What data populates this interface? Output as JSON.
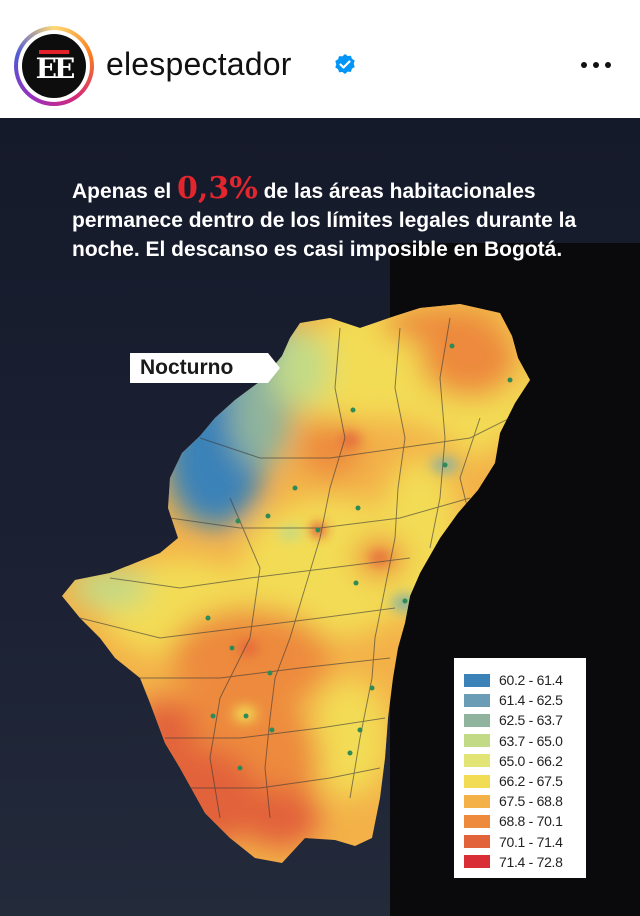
{
  "header": {
    "username": "elespectador",
    "avatar_text": "EE",
    "verified_icon": "verified-badge-icon",
    "more_icon": "more-options-icon"
  },
  "post": {
    "headline_pre": "Apenas el ",
    "headline_pct": "0,3%",
    "headline_rest": " de las áreas habitacionales permanece dentro de los límites legales durante la noche. El descanso es casi imposible en Bogotá.",
    "map_label": "Nocturno",
    "legend": [
      {
        "label": "60.2 - 61.4",
        "color": "#3b82b8"
      },
      {
        "label": "61.4 - 62.5",
        "color": "#6a9db5"
      },
      {
        "label": "62.5 - 63.7",
        "color": "#8fb39c"
      },
      {
        "label": "63.7 - 65.0",
        "color": "#c2da86"
      },
      {
        "label": "65.0 - 66.2",
        "color": "#e3e476"
      },
      {
        "label": "66.2 - 67.5",
        "color": "#f3dc55"
      },
      {
        "label": "67.5 - 68.8",
        "color": "#f3b148"
      },
      {
        "label": "68.8 - 70.1",
        "color": "#ed8a3c"
      },
      {
        "label": "70.1 - 71.4",
        "color": "#e2623a"
      },
      {
        "label": "71.4 - 72.8",
        "color": "#d92e36"
      }
    ]
  }
}
